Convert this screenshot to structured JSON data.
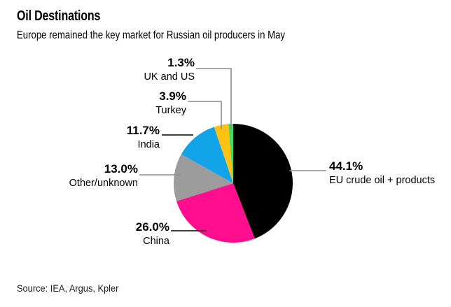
{
  "header": {
    "title": "Oil Destinations",
    "subtitle": "Europe remained the key market for Russian oil producers in May"
  },
  "footer": {
    "source": "Source: IEA, Argus, Kpler"
  },
  "chart_data": {
    "type": "pie",
    "title": "Oil Destinations",
    "subtitle": "Europe remained the key market for Russian oil producers in May",
    "source": "Source: IEA, Argus, Kpler",
    "unit": "%",
    "start_angle_deg": 0,
    "direction": "clockwise",
    "legend_position": "callout-labels",
    "slices": [
      {
        "label": "EU crude oil + products",
        "value": 44.1,
        "value_label": "44.1%",
        "color": "#000000",
        "callout_side": "right"
      },
      {
        "label": "China",
        "value": 26.0,
        "value_label": "26.0%",
        "color": "#ff0f8e",
        "callout_side": "left"
      },
      {
        "label": "Other/unknown",
        "value": 13.0,
        "value_label": "13.0%",
        "color": "#9c9c9c",
        "callout_side": "left"
      },
      {
        "label": "India",
        "value": 11.7,
        "value_label": "11.7%",
        "color": "#12a3e8",
        "callout_side": "left"
      },
      {
        "label": "Turkey",
        "value": 3.9,
        "value_label": "3.9%",
        "color": "#ffc114",
        "callout_side": "top"
      },
      {
        "label": "UK and US",
        "value": 1.3,
        "value_label": "1.3%",
        "color": "#43d966",
        "callout_side": "top"
      }
    ]
  }
}
